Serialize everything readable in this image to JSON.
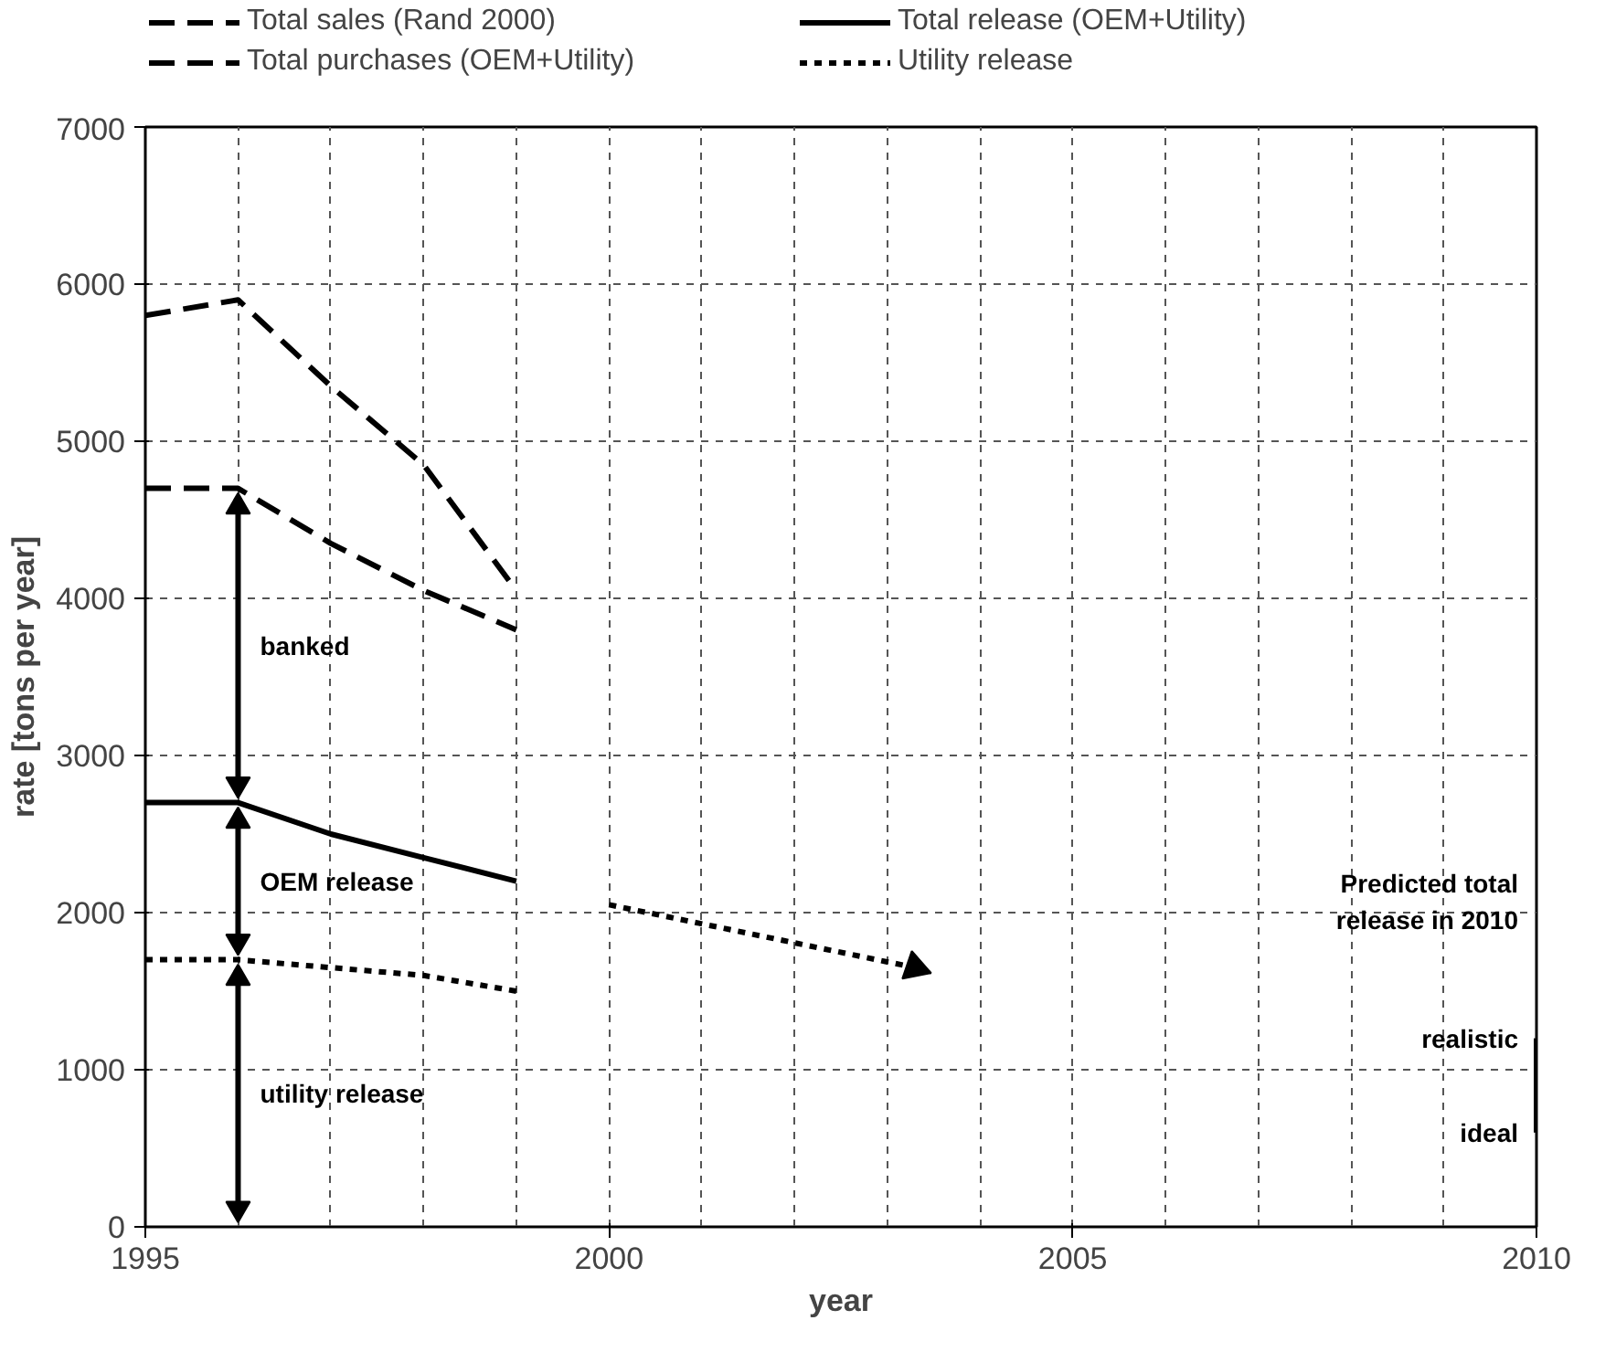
{
  "chart_data": {
    "type": "line",
    "xlabel": "year",
    "ylabel": "rate [tons per year]",
    "xlim": [
      1995,
      2010
    ],
    "xticks": [
      1995,
      2000,
      2005,
      2010
    ],
    "ylim": [
      0,
      7000
    ],
    "yticks": [
      0,
      1000,
      2000,
      3000,
      4000,
      5000,
      6000,
      7000
    ],
    "grid": true,
    "legend": "top",
    "series": [
      {
        "name": "Total sales (Rand 2000)",
        "color": "#000000",
        "line_style": "dashed",
        "x": [
          1995,
          1996,
          1997,
          1998,
          1999
        ],
        "values": [
          5800,
          5900,
          5350,
          4850,
          4050
        ]
      },
      {
        "name": "Total purchases (OEM+Utility)",
        "color": "#000000",
        "line_style": "dashed",
        "x": [
          1995,
          1996,
          1997,
          1998,
          1999
        ],
        "values": [
          4700,
          4700,
          4350,
          4050,
          3800
        ]
      },
      {
        "name": "Total release (OEM+Utility)",
        "color": "#000000",
        "line_style": "solid",
        "x": [
          1995,
          1996,
          1997,
          1998,
          1999
        ],
        "values": [
          2700,
          2700,
          2500,
          2350,
          2200
        ]
      },
      {
        "name": "Utility release",
        "color": "#000000",
        "line_style": "dotted",
        "x": [
          1995,
          1996,
          1997,
          1998,
          1999
        ],
        "values": [
          1700,
          1700,
          1650,
          1600,
          1500
        ]
      },
      {
        "color": "#000000",
        "line_style": "dotted",
        "x": [
          2000,
          2003.3
        ],
        "values": [
          2050,
          1650
        ]
      },
      {
        "color": "#000000",
        "line_style": "solid",
        "x": [
          2010,
          2010
        ],
        "values": [
          600,
          1200
        ]
      }
    ],
    "annotations": [
      "banked",
      "OEM release",
      "utility release",
      "Predicted total\nrelease in 2010",
      {
        "text": "realistic",
        "x": 2010,
        "y": 1200
      },
      {
        "text": "ideal",
        "x": 2010,
        "y": 600
      }
    ]
  }
}
